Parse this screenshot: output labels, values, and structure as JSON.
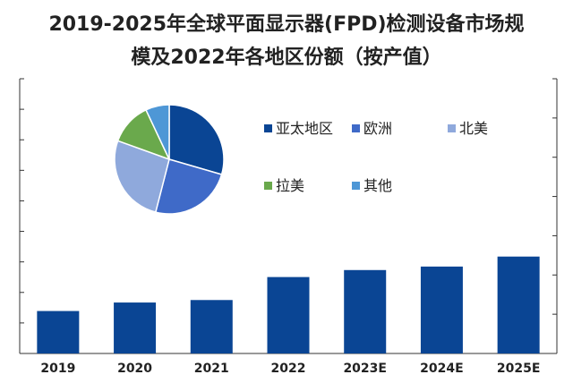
{
  "title_lines": [
    "2019-2025年全球平面显示器(FPD)检测设备市场规",
    "模及2022年各地区份额（按产值）"
  ],
  "chart_data": [
    {
      "type": "bar",
      "categories": [
        "2019",
        "2020",
        "2021",
        "2022",
        "2023E",
        "2024E",
        "2025E"
      ],
      "values": [
        0.85,
        1.02,
        1.07,
        1.53,
        1.67,
        1.74,
        1.94
      ],
      "color": "#0a4594",
      "y_ticks_left": 9,
      "y_ticks_right": 7,
      "ylim": [
        0,
        5.5
      ],
      "tick_labels_visible": false,
      "grid": false
    },
    {
      "type": "pie",
      "labels": [
        "亚太地区",
        "欧洲",
        "北美",
        "拉美",
        "其他"
      ],
      "values": [
        29.5,
        24.5,
        26.5,
        12.5,
        7.0
      ],
      "colors": [
        "#0a4594",
        "#3f6ac8",
        "#8fa9dc",
        "#6aa94c",
        "#4e97d6"
      ],
      "legend_placement": "right"
    }
  ]
}
